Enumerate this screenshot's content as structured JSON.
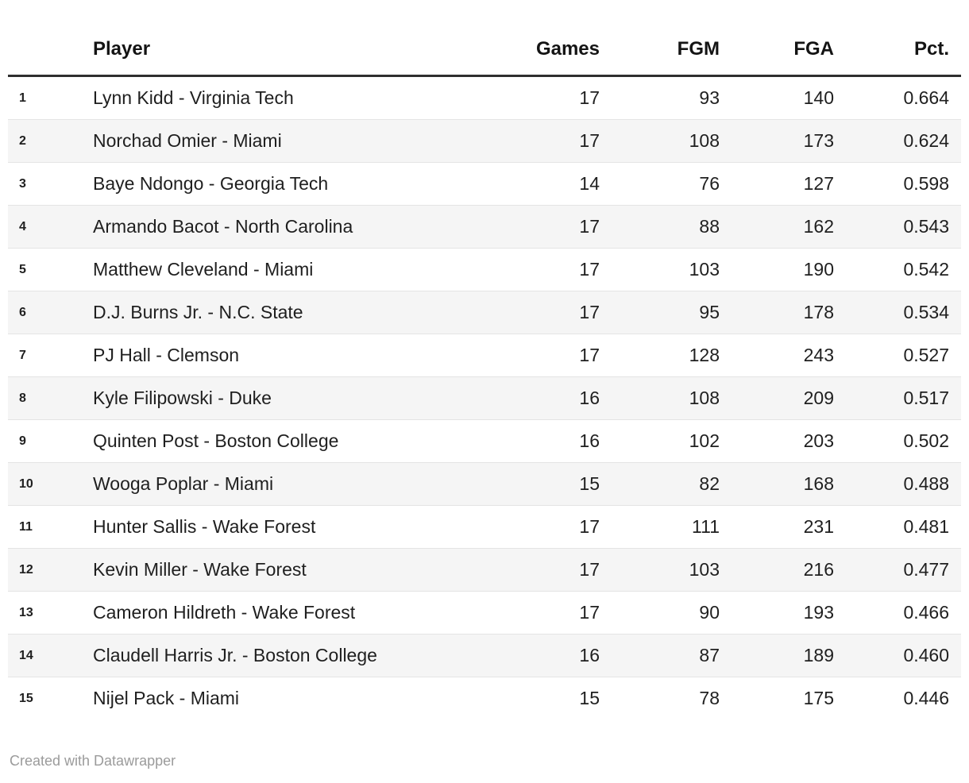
{
  "chart_data": {
    "type": "table",
    "columns": [
      {
        "key": "rank",
        "label": "",
        "align": "left"
      },
      {
        "key": "player",
        "label": "Player",
        "align": "left"
      },
      {
        "key": "games",
        "label": "Games",
        "align": "right"
      },
      {
        "key": "fgm",
        "label": "FGM",
        "align": "right"
      },
      {
        "key": "fga",
        "label": "FGA",
        "align": "right"
      },
      {
        "key": "pct",
        "label": "Pct.",
        "align": "right"
      }
    ],
    "rows": [
      {
        "rank": "1",
        "player": "Lynn Kidd - Virginia Tech",
        "games": "17",
        "fgm": "93",
        "fga": "140",
        "pct": "0.664"
      },
      {
        "rank": "2",
        "player": "Norchad Omier - Miami",
        "games": "17",
        "fgm": "108",
        "fga": "173",
        "pct": "0.624"
      },
      {
        "rank": "3",
        "player": "Baye Ndongo - Georgia Tech",
        "games": "14",
        "fgm": "76",
        "fga": "127",
        "pct": "0.598"
      },
      {
        "rank": "4",
        "player": "Armando Bacot - North Carolina",
        "games": "17",
        "fgm": "88",
        "fga": "162",
        "pct": "0.543"
      },
      {
        "rank": "5",
        "player": "Matthew Cleveland - Miami",
        "games": "17",
        "fgm": "103",
        "fga": "190",
        "pct": "0.542"
      },
      {
        "rank": "6",
        "player": "D.J. Burns Jr. - N.C. State",
        "games": "17",
        "fgm": "95",
        "fga": "178",
        "pct": "0.534"
      },
      {
        "rank": "7",
        "player": "PJ Hall - Clemson",
        "games": "17",
        "fgm": "128",
        "fga": "243",
        "pct": "0.527"
      },
      {
        "rank": "8",
        "player": "Kyle Filipowski - Duke",
        "games": "16",
        "fgm": "108",
        "fga": "209",
        "pct": "0.517"
      },
      {
        "rank": "9",
        "player": "Quinten Post - Boston College",
        "games": "16",
        "fgm": "102",
        "fga": "203",
        "pct": "0.502"
      },
      {
        "rank": "10",
        "player": "Wooga Poplar - Miami",
        "games": "15",
        "fgm": "82",
        "fga": "168",
        "pct": "0.488"
      },
      {
        "rank": "11",
        "player": "Hunter Sallis - Wake Forest",
        "games": "17",
        "fgm": "111",
        "fga": "231",
        "pct": "0.481"
      },
      {
        "rank": "12",
        "player": "Kevin Miller - Wake Forest",
        "games": "17",
        "fgm": "103",
        "fga": "216",
        "pct": "0.477"
      },
      {
        "rank": "13",
        "player": "Cameron Hildreth - Wake Forest",
        "games": "17",
        "fgm": "90",
        "fga": "193",
        "pct": "0.466"
      },
      {
        "rank": "14",
        "player": "Claudell Harris Jr. - Boston College",
        "games": "16",
        "fgm": "87",
        "fga": "189",
        "pct": "0.460"
      },
      {
        "rank": "15",
        "player": "Nijel Pack - Miami",
        "games": "15",
        "fgm": "78",
        "fga": "175",
        "pct": "0.446"
      }
    ],
    "layout_hints": {
      "grid": "horizontal-dividers",
      "striped_rows": true,
      "header_rule": "thick-dark"
    }
  },
  "footer": {
    "credit": "Created with Datawrapper"
  },
  "colors": {
    "stripe": "#f5f5f5",
    "divider": "#e4e4e4",
    "header_rule": "#2f2f2f",
    "text": "#1f1f1f",
    "footer_text": "#9b9b9b",
    "background": "#ffffff"
  }
}
